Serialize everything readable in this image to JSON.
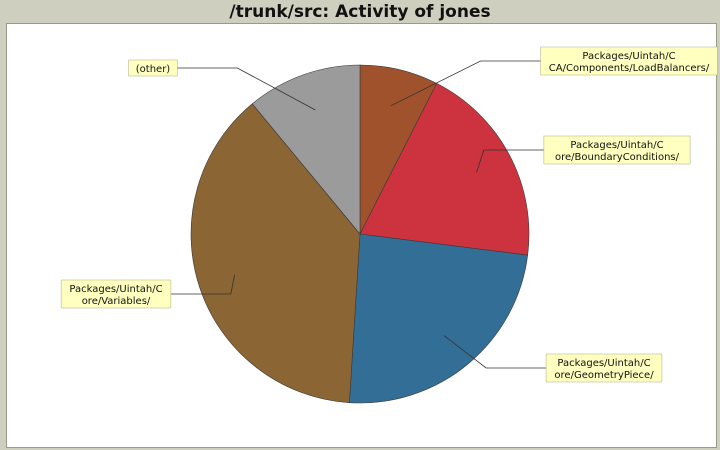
{
  "chart_data": {
    "type": "pie",
    "title": "/trunk/src: Activity of jones",
    "slices": [
      {
        "label": "Packages/Uintah/CCA/Components/LoadBalancers/",
        "lines": [
          "Packages/Uintah/C",
          "CA/Components/LoadBalancers/"
        ],
        "value": 7.5,
        "color": "#a0522d"
      },
      {
        "label": "Packages/Uintah/Core/BoundaryConditions/",
        "lines": [
          "Packages/Uintah/C",
          "ore/BoundaryConditions/"
        ],
        "value": 19.5,
        "color": "#cc333f"
      },
      {
        "label": "Packages/Uintah/Core/GeometryPiece/",
        "lines": [
          "Packages/Uintah/C",
          "ore/GeometryPiece/"
        ],
        "value": 24.0,
        "color": "#336e96"
      },
      {
        "label": "Packages/Uintah/Core/Variables/",
        "lines": [
          "Packages/Uintah/C",
          "ore/Variables/"
        ],
        "value": 38.0,
        "color": "#8b6534"
      },
      {
        "label": "(other)",
        "lines": [
          "(other)"
        ],
        "value": 11.0,
        "color": "#9b9b9b"
      }
    ]
  }
}
